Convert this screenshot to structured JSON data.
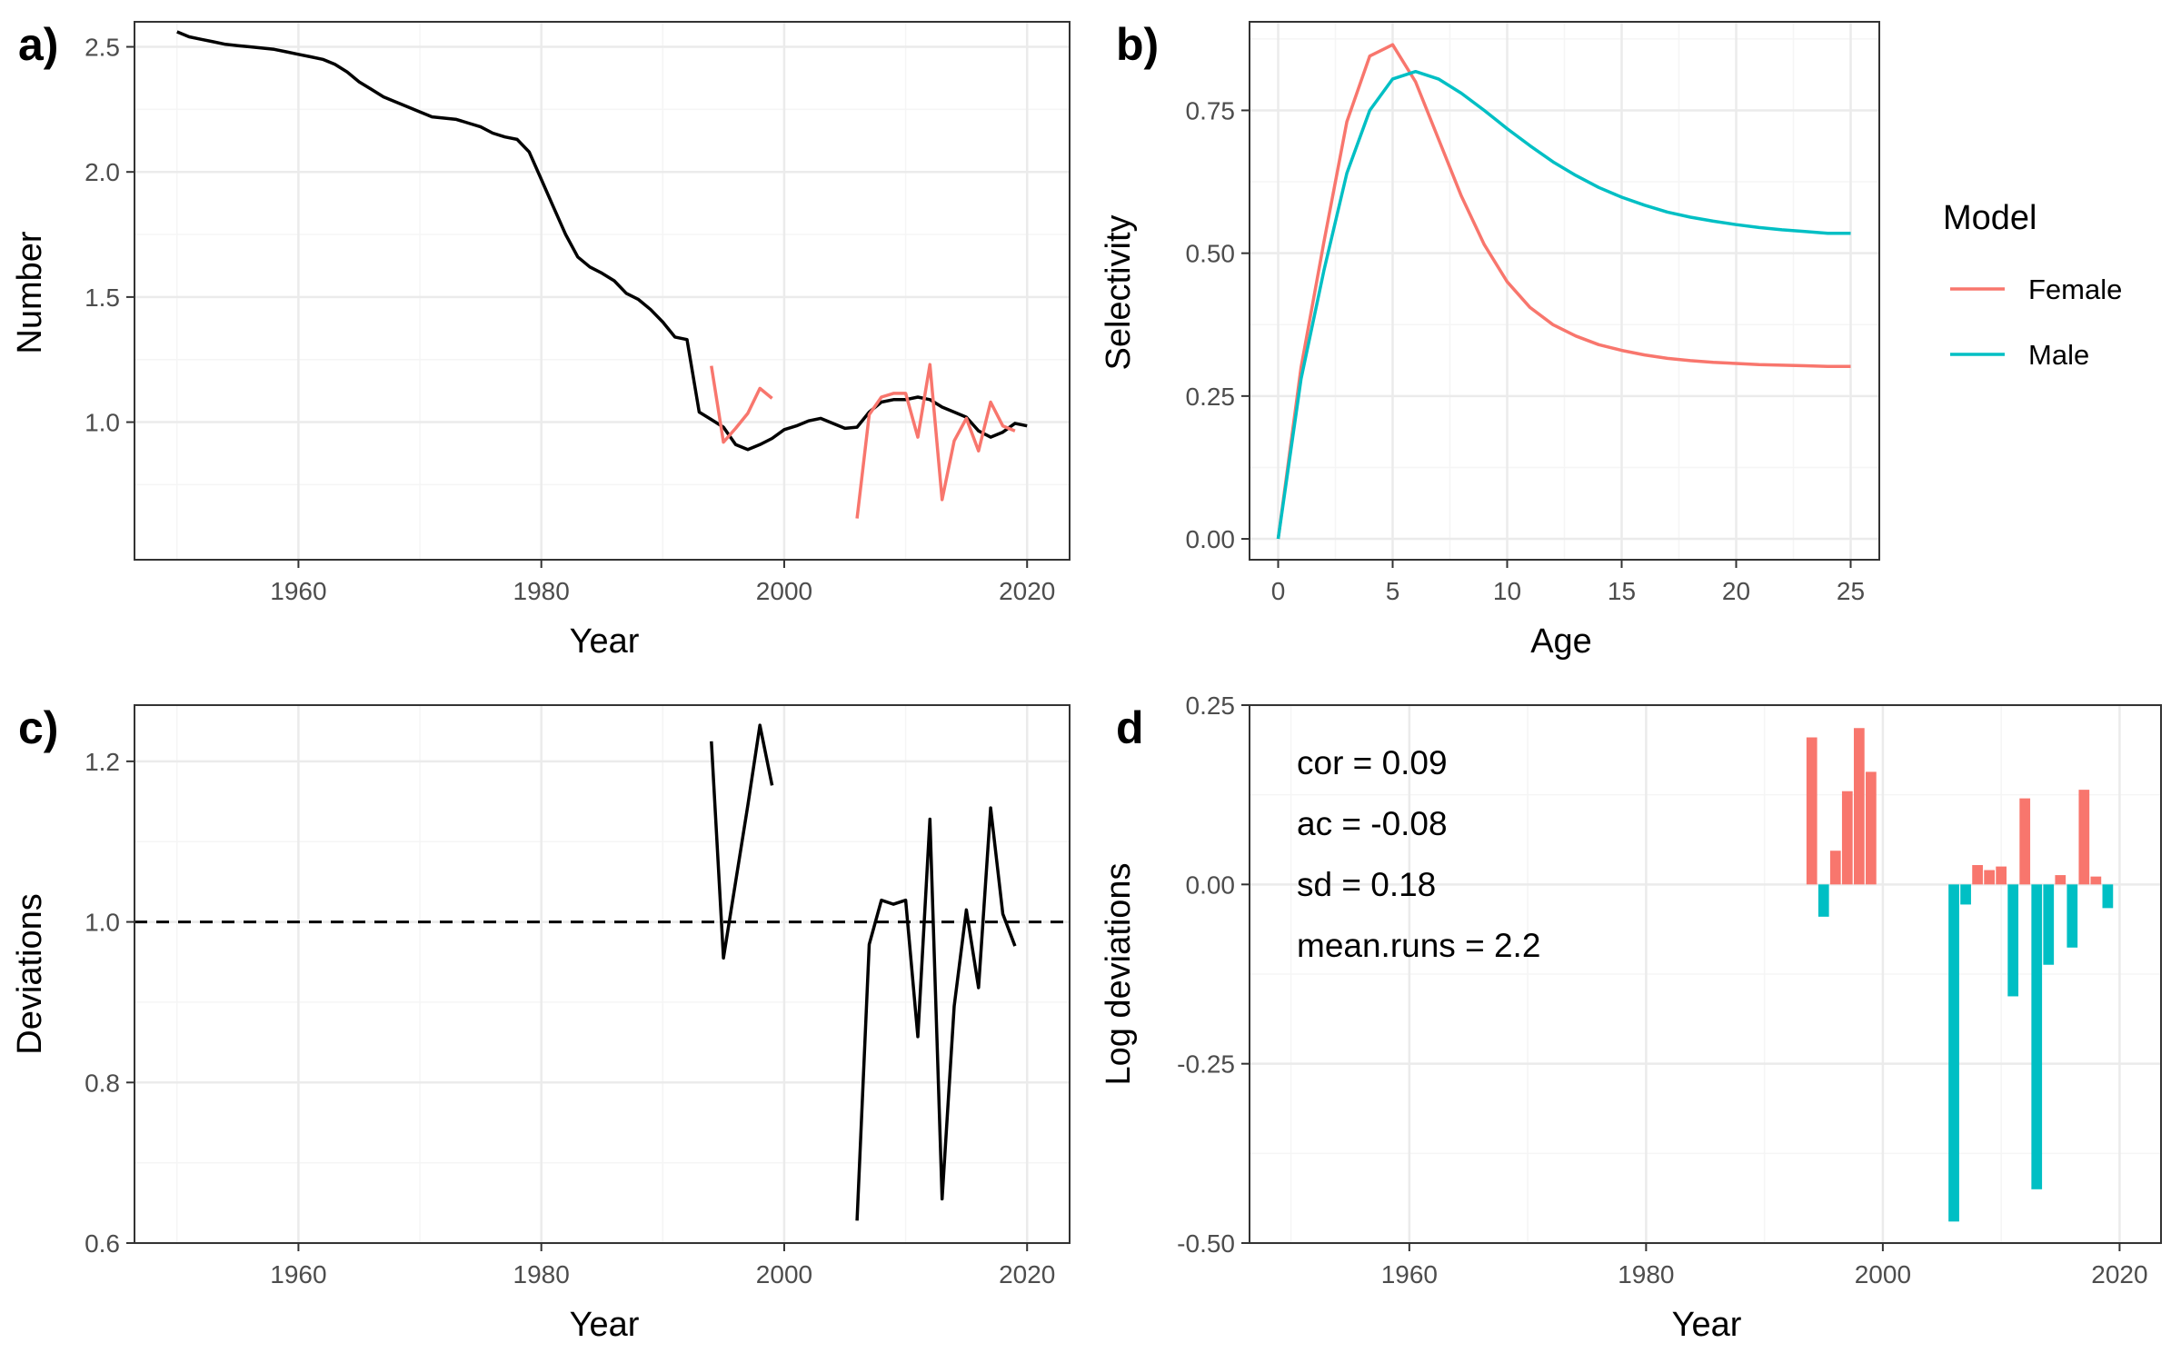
{
  "colors": {
    "female": "#F8766D",
    "male": "#00BFC4",
    "line": "#000000",
    "grid_major": "#EBEBEB",
    "grid_minor": "#F5F5F5",
    "border": "#333333"
  },
  "chart_data": [
    {
      "panel": "a)",
      "type": "line",
      "xlabel": "Year",
      "ylabel": "Number",
      "xlim": [
        1946.5,
        2023.5
      ],
      "ylim": [
        0.45,
        2.6
      ],
      "xticks": [
        1960,
        1980,
        2000,
        2020
      ],
      "yticks": [
        1.0,
        1.5,
        2.0,
        2.5
      ],
      "ytick_labels": [
        "1.0",
        "1.5",
        "2.0",
        "2.5"
      ],
      "series": [
        {
          "color": "black",
          "x": [
            1950,
            1951,
            1952,
            1953,
            1954,
            1955,
            1956,
            1957,
            1958,
            1959,
            1960,
            1961,
            1962,
            1963,
            1964,
            1965,
            1966,
            1967,
            1968,
            1969,
            1970,
            1971,
            1972,
            1973,
            1974,
            1975,
            1976,
            1977,
            1978,
            1979,
            1980,
            1981,
            1982,
            1983,
            1984,
            1985,
            1986,
            1987,
            1988,
            1989,
            1990,
            1991,
            1992,
            1993,
            1994,
            1995,
            1996,
            1997,
            1998,
            1999,
            2000,
            2001,
            2002,
            2003,
            2004,
            2005,
            2006,
            2007,
            2008,
            2009,
            2010,
            2011,
            2012,
            2013,
            2014,
            2015,
            2016,
            2017,
            2018,
            2019,
            2020
          ],
          "y": [
            2.56,
            2.54,
            2.53,
            2.52,
            2.51,
            2.505,
            2.5,
            2.495,
            2.49,
            2.48,
            2.47,
            2.46,
            2.45,
            2.43,
            2.4,
            2.36,
            2.33,
            2.3,
            2.28,
            2.26,
            2.24,
            2.22,
            2.215,
            2.21,
            2.195,
            2.18,
            2.155,
            2.14,
            2.13,
            2.08,
            1.97,
            1.86,
            1.75,
            1.66,
            1.62,
            1.595,
            1.565,
            1.515,
            1.49,
            1.45,
            1.4,
            1.34,
            1.33,
            1.04,
            1.01,
            0.98,
            0.91,
            0.89,
            0.91,
            0.935,
            0.97,
            0.985,
            1.005,
            1.015,
            0.995,
            0.975,
            0.98,
            1.04,
            1.08,
            1.09,
            1.09,
            1.1,
            1.09,
            1.06,
            1.04,
            1.02,
            0.965,
            0.94,
            0.96,
            0.995,
            0.985
          ]
        },
        {
          "color": "female",
          "segments": [
            {
              "x": [
                1994,
                1995,
                1996,
                1997,
                1998,
                1999
              ],
              "y": [
                1.225,
                0.92,
                0.975,
                1.035,
                1.135,
                1.095
              ]
            },
            {
              "x": [
                2006,
                2007,
                2008,
                2009,
                2010,
                2011,
                2012,
                2013,
                2014,
                2015,
                2016,
                2017,
                2018,
                2019
              ],
              "y": [
                0.615,
                1.03,
                1.1,
                1.115,
                1.115,
                0.94,
                1.23,
                0.69,
                0.925,
                1.015,
                0.885,
                1.08,
                0.985,
                0.965
              ]
            }
          ]
        }
      ]
    },
    {
      "panel": "b)",
      "type": "line",
      "xlabel": "Age",
      "ylabel": "Selectivity",
      "xlim": [
        -1.25,
        26.25
      ],
      "ylim": [
        -0.0365,
        0.905
      ],
      "xticks": [
        0,
        5,
        10,
        15,
        20,
        25
      ],
      "yticks": [
        0.0,
        0.25,
        0.5,
        0.75
      ],
      "ytick_labels": [
        "0.00",
        "0.25",
        "0.50",
        "0.75"
      ],
      "legend": {
        "title": "Model",
        "position": "right",
        "entries": [
          "Female",
          "Male"
        ]
      },
      "series": [
        {
          "name": "Female",
          "color": "female",
          "x": [
            0,
            1,
            2,
            3,
            4,
            5,
            6,
            7,
            8,
            9,
            10,
            11,
            12,
            13,
            14,
            15,
            16,
            17,
            18,
            19,
            20,
            21,
            22,
            23,
            24,
            25
          ],
          "y": [
            0.0,
            0.3,
            0.52,
            0.73,
            0.845,
            0.865,
            0.8,
            0.7,
            0.6,
            0.515,
            0.45,
            0.405,
            0.375,
            0.355,
            0.34,
            0.33,
            0.322,
            0.316,
            0.312,
            0.309,
            0.307,
            0.305,
            0.304,
            0.303,
            0.302,
            0.302
          ]
        },
        {
          "name": "Male",
          "color": "male",
          "x": [
            0,
            1,
            2,
            3,
            4,
            5,
            6,
            7,
            8,
            9,
            10,
            11,
            12,
            13,
            14,
            15,
            16,
            17,
            18,
            19,
            20,
            21,
            22,
            23,
            24,
            25
          ],
          "y": [
            0.0,
            0.28,
            0.47,
            0.64,
            0.75,
            0.805,
            0.818,
            0.805,
            0.78,
            0.75,
            0.718,
            0.688,
            0.66,
            0.636,
            0.615,
            0.598,
            0.584,
            0.572,
            0.563,
            0.556,
            0.55,
            0.545,
            0.541,
            0.538,
            0.535,
            0.535
          ]
        }
      ]
    },
    {
      "panel": "c)",
      "type": "line",
      "xlabel": "Year",
      "ylabel": "Deviations",
      "xlim": [
        1946.5,
        2023.5
      ],
      "ylim": [
        0.6,
        1.27
      ],
      "xticks": [
        1960,
        1980,
        2000,
        2020
      ],
      "yticks": [
        0.6,
        0.8,
        1.0,
        1.2
      ],
      "ytick_labels": [
        "0.6",
        "0.8",
        "1.0",
        "1.2"
      ],
      "reference_line": {
        "y": 1.0,
        "style": "dashed"
      },
      "series": [
        {
          "color": "black",
          "segments": [
            {
              "x": [
                1994,
                1995,
                1996,
                1997,
                1998,
                1999
              ],
              "y": [
                1.225,
                0.955,
                1.05,
                1.145,
                1.245,
                1.17
              ]
            },
            {
              "x": [
                2006,
                2007,
                2008,
                2009,
                2010,
                2011,
                2012,
                2013,
                2014,
                2015,
                2016,
                2017,
                2018,
                2019
              ],
              "y": [
                0.628,
                0.972,
                1.027,
                1.022,
                1.027,
                0.857,
                1.128,
                0.655,
                0.895,
                1.015,
                0.918,
                1.142,
                1.01,
                0.97
              ]
            }
          ]
        }
      ]
    },
    {
      "panel": "d",
      "type": "bar",
      "xlabel": "Year",
      "ylabel": "Log deviations",
      "xlim": [
        1946.5,
        2023.5
      ],
      "ylim": [
        -0.5,
        0.25
      ],
      "xticks": [
        1960,
        1980,
        2000,
        2020
      ],
      "yticks": [
        -0.5,
        -0.25,
        0.0,
        0.25
      ],
      "ytick_labels": [
        "-0.50",
        "-0.25",
        "0.00",
        "0.25"
      ],
      "annotations": [
        "cor = 0.09",
        "ac = -0.08",
        "sd = 0.18",
        "mean.runs = 2.2"
      ],
      "bars": [
        {
          "x": 1994,
          "y": 0.205
        },
        {
          "x": 1995,
          "y": -0.045
        },
        {
          "x": 1996,
          "y": 0.047
        },
        {
          "x": 1997,
          "y": 0.13
        },
        {
          "x": 1998,
          "y": 0.218
        },
        {
          "x": 1999,
          "y": 0.157
        },
        {
          "x": 2006,
          "y": -0.47
        },
        {
          "x": 2007,
          "y": -0.028
        },
        {
          "x": 2008,
          "y": 0.027
        },
        {
          "x": 2009,
          "y": 0.02
        },
        {
          "x": 2010,
          "y": 0.025
        },
        {
          "x": 2011,
          "y": -0.156
        },
        {
          "x": 2012,
          "y": 0.12
        },
        {
          "x": 2013,
          "y": -0.425
        },
        {
          "x": 2014,
          "y": -0.112
        },
        {
          "x": 2015,
          "y": 0.013
        },
        {
          "x": 2016,
          "y": -0.088
        },
        {
          "x": 2017,
          "y": 0.132
        },
        {
          "x": 2018,
          "y": 0.011
        },
        {
          "x": 2019,
          "y": -0.033
        }
      ]
    }
  ]
}
